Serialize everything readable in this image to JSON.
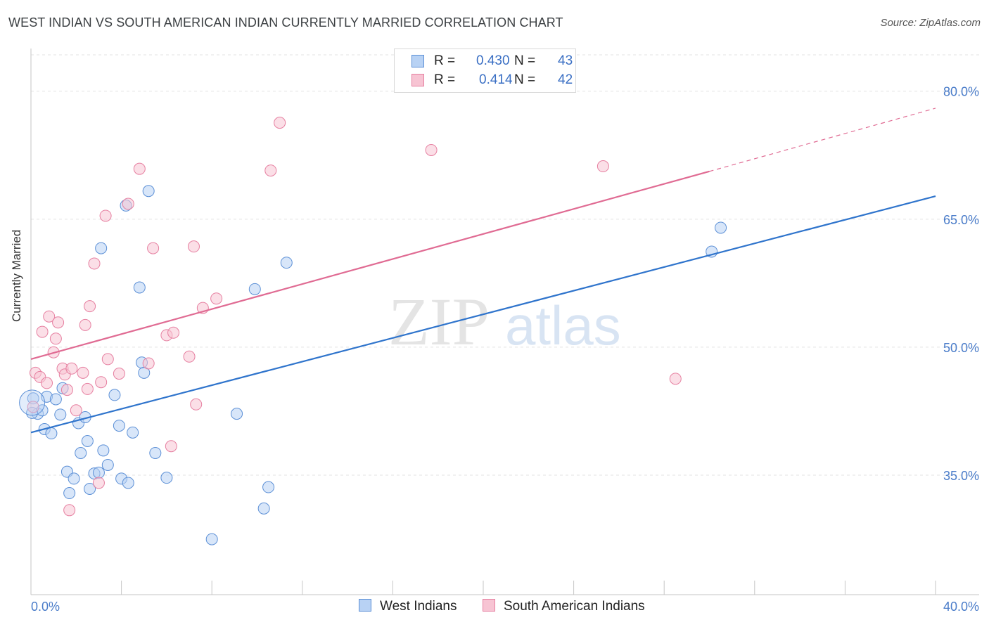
{
  "header": {
    "title": "WEST INDIAN VS SOUTH AMERICAN INDIAN CURRENTLY MARRIED CORRELATION CHART",
    "source": "Source: ZipAtlas.com"
  },
  "watermark": {
    "zip": "ZIP",
    "atlas": "atlas"
  },
  "legend": {
    "rows": [
      {
        "r_label": "R =",
        "r_value": "0.430",
        "n_label": "N =",
        "n_value": "43"
      },
      {
        "r_label": "R =",
        "r_value": "0.414",
        "n_label": "N =",
        "n_value": "42"
      }
    ]
  },
  "bottom_legend": {
    "series_a": "West Indians",
    "series_b": "South American Indians"
  },
  "colors": {
    "blue_fill": "#b8d2f4",
    "blue_stroke": "#5b8fd6",
    "blue_line": "#2f74cc",
    "pink_fill": "#f7c4d3",
    "pink_stroke": "#e67fa0",
    "pink_line": "#e06b93",
    "tick_label": "#4a7cc9"
  },
  "chart_data": {
    "type": "scatter",
    "title": "WEST INDIAN VS SOUTH AMERICAN INDIAN CURRENTLY MARRIED CORRELATION CHART",
    "xlabel": "",
    "ylabel": "Currently Married",
    "xlim": [
      0,
      40
    ],
    "ylim": [
      21,
      85
    ],
    "x_tick_labels": [
      "0.0%",
      "40.0%"
    ],
    "y_ticks": [
      35,
      50,
      65,
      80
    ],
    "y_tick_labels": [
      "35.0%",
      "50.0%",
      "65.0%",
      "80.0%"
    ],
    "grid": true,
    "legend_position": "top-center",
    "series": [
      {
        "name": "West Indians",
        "color": "#5b8fd6",
        "R": 0.43,
        "N": 43,
        "trend": {
          "x0": 0,
          "y0": 40.0,
          "x1": 40,
          "y1": 67.7,
          "dashed_from": null
        },
        "points": [
          [
            0.1,
            44.0
          ],
          [
            0.3,
            42.2
          ],
          [
            0.5,
            42.6
          ],
          [
            0.6,
            40.4
          ],
          [
            0.7,
            44.2
          ],
          [
            0.9,
            39.9
          ],
          [
            1.1,
            43.9
          ],
          [
            1.3,
            42.1
          ],
          [
            1.4,
            45.2
          ],
          [
            1.6,
            35.4
          ],
          [
            1.7,
            32.9
          ],
          [
            1.9,
            34.6
          ],
          [
            2.1,
            41.1
          ],
          [
            2.2,
            37.6
          ],
          [
            2.4,
            41.8
          ],
          [
            2.5,
            39.0
          ],
          [
            2.6,
            33.4
          ],
          [
            2.8,
            35.2
          ],
          [
            3.0,
            35.3
          ],
          [
            3.1,
            61.6
          ],
          [
            3.2,
            37.9
          ],
          [
            3.4,
            36.2
          ],
          [
            3.7,
            44.4
          ],
          [
            3.9,
            40.8
          ],
          [
            4.0,
            34.6
          ],
          [
            4.2,
            66.6
          ],
          [
            4.3,
            34.1
          ],
          [
            4.5,
            40.0
          ],
          [
            4.8,
            57.0
          ],
          [
            4.9,
            48.2
          ],
          [
            5.0,
            47.0
          ],
          [
            5.2,
            68.3
          ],
          [
            5.5,
            37.6
          ],
          [
            6.0,
            34.7
          ],
          [
            8.0,
            27.5
          ],
          [
            9.1,
            42.2
          ],
          [
            9.9,
            56.8
          ],
          [
            10.3,
            31.1
          ],
          [
            10.5,
            33.6
          ],
          [
            11.3,
            59.9
          ],
          [
            30.1,
            61.2
          ],
          [
            30.5,
            64.0
          ],
          [
            0.05,
            42.3
          ]
        ]
      },
      {
        "name": "South American Indians",
        "color": "#e67fa0",
        "R": 0.414,
        "N": 42,
        "trend": {
          "x0": 0,
          "y0": 48.6,
          "x1": 30.0,
          "y1": 70.6,
          "dashed_from": 30.0,
          "dashed_to": [
            40,
            78.0
          ]
        },
        "points": [
          [
            0.1,
            43.0
          ],
          [
            0.2,
            47.0
          ],
          [
            0.4,
            46.5
          ],
          [
            0.5,
            51.8
          ],
          [
            0.7,
            45.8
          ],
          [
            0.8,
            53.6
          ],
          [
            1.0,
            49.4
          ],
          [
            1.1,
            51.0
          ],
          [
            1.2,
            52.9
          ],
          [
            1.4,
            47.5
          ],
          [
            1.5,
            46.8
          ],
          [
            1.6,
            45.0
          ],
          [
            1.8,
            47.5
          ],
          [
            2.0,
            42.6
          ],
          [
            2.3,
            47.0
          ],
          [
            2.4,
            52.6
          ],
          [
            2.5,
            45.1
          ],
          [
            2.6,
            54.8
          ],
          [
            2.8,
            59.8
          ],
          [
            3.0,
            34.1
          ],
          [
            3.1,
            45.9
          ],
          [
            3.3,
            65.4
          ],
          [
            3.4,
            48.6
          ],
          [
            3.9,
            46.9
          ],
          [
            4.3,
            66.8
          ],
          [
            4.8,
            70.9
          ],
          [
            5.2,
            48.1
          ],
          [
            5.4,
            61.6
          ],
          [
            6.0,
            51.4
          ],
          [
            6.3,
            51.7
          ],
          [
            6.2,
            38.4
          ],
          [
            7.0,
            48.9
          ],
          [
            7.2,
            61.8
          ],
          [
            7.3,
            43.3
          ],
          [
            7.6,
            54.6
          ],
          [
            8.2,
            55.7
          ],
          [
            10.6,
            70.7
          ],
          [
            11.0,
            76.3
          ],
          [
            17.7,
            73.1
          ],
          [
            25.3,
            71.2
          ],
          [
            28.5,
            46.3
          ],
          [
            1.7,
            30.9
          ]
        ]
      }
    ]
  }
}
